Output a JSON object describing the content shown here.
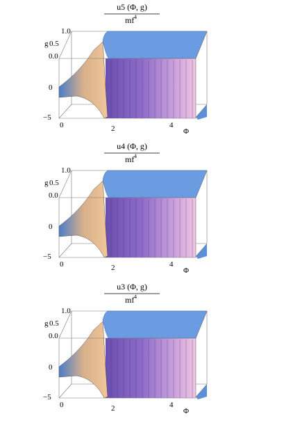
{
  "plots": [
    {
      "numerator": "u5 (Φ, g)",
      "denominator": "mf",
      "denominator_exponent": "4",
      "g_label": "g",
      "g_ticks": [
        "1.0",
        "0.5",
        "0.0"
      ],
      "vertical_ticks": [
        "0",
        "−5"
      ],
      "phi_ticks": [
        "0",
        "2",
        "4"
      ],
      "phi_label": "Φ"
    },
    {
      "numerator": "u4 (Φ, g)",
      "denominator": "mf",
      "denominator_exponent": "4",
      "g_label": "g",
      "g_ticks": [
        "1.0",
        "0.5",
        "0.0"
      ],
      "vertical_ticks": [
        "0",
        "−5"
      ],
      "phi_ticks": [
        "0",
        "2",
        "4"
      ],
      "phi_label": "Φ"
    },
    {
      "numerator": "u3 (Φ, g)",
      "denominator": "mf",
      "denominator_exponent": "4",
      "g_label": "g",
      "g_ticks": [
        "1.0",
        "0.5",
        "0.0"
      ],
      "vertical_ticks": [
        "0",
        "−5"
      ],
      "phi_ticks": [
        "0",
        "2",
        "4"
      ],
      "phi_label": "Φ"
    }
  ]
}
